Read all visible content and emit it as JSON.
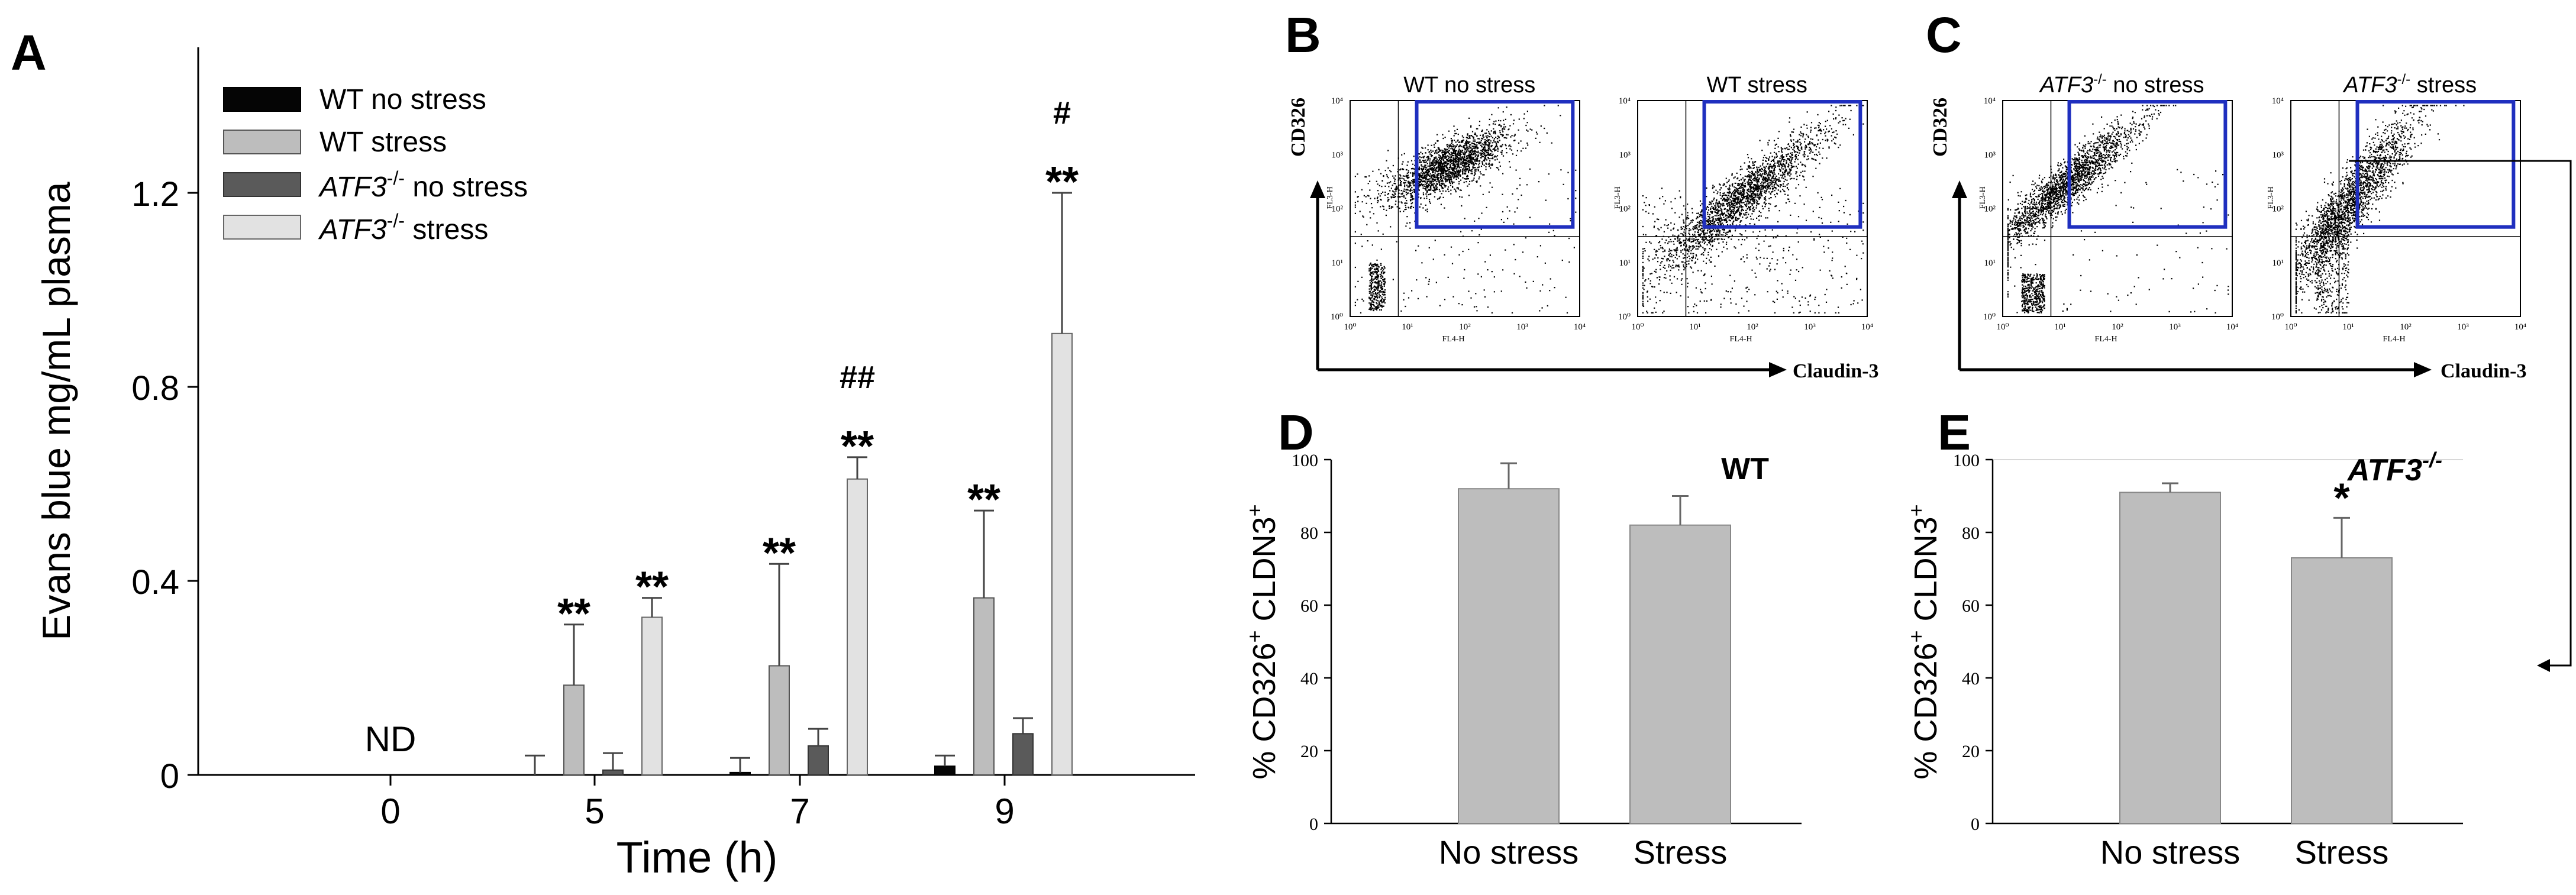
{
  "panels": {
    "A": "A",
    "B": "B",
    "C": "C",
    "D": "D",
    "E": "E"
  },
  "colors": {
    "wt_no_stress": "#050505",
    "wt_stress": "#bdbdbd",
    "atf3_no_stress": "#5a5a5a",
    "atf3_stress": "#e2e2e2",
    "gate": "#1f2fbf",
    "bar_gray": "#bdbdbd"
  },
  "chart_data": [
    {
      "id": "A",
      "type": "bar",
      "ylabel": "Evans blue mg/mL plasma",
      "xlabel": "Time (h)",
      "categories": [
        "0",
        "5",
        "7",
        "9"
      ],
      "yticks": [
        "0",
        "0.4",
        "0.8",
        "1.2"
      ],
      "ylim": [
        0,
        1.5
      ],
      "series": [
        {
          "name": "WT no stress",
          "name_italic": "",
          "name_sup": "",
          "name_rest": "",
          "values": [
            null,
            0.0,
            0.005,
            0.018
          ],
          "errors": [
            null,
            0.04,
            0.03,
            0.022
          ]
        },
        {
          "name": "WT stress",
          "name_italic": "",
          "name_sup": "",
          "name_rest": "",
          "values": [
            null,
            0.185,
            0.225,
            0.365
          ],
          "errors": [
            null,
            0.125,
            0.21,
            0.18
          ]
        },
        {
          "name": "ATF3-/- no stress",
          "name_italic": "ATF3",
          "name_sup": "-/-",
          "name_rest": " no stress",
          "values": [
            null,
            0.01,
            0.06,
            0.085
          ],
          "errors": [
            null,
            0.035,
            0.035,
            0.032
          ]
        },
        {
          "name": "ATF3-/- stress",
          "name_italic": "ATF3",
          "name_sup": "-/-",
          "name_rest": " stress",
          "values": [
            null,
            0.325,
            0.61,
            0.91
          ],
          "errors": [
            null,
            0.04,
            0.045,
            0.29
          ]
        }
      ],
      "annotations": [
        {
          "category": 0,
          "series": "center",
          "text": "ND"
        },
        {
          "category": 1,
          "series": 1,
          "text": "**"
        },
        {
          "category": 1,
          "series": 3,
          "text": "**"
        },
        {
          "category": 2,
          "series": 1,
          "text": "**"
        },
        {
          "category": 2,
          "series": 3,
          "text": "**"
        },
        {
          "category": 2,
          "series": 3,
          "text": "##",
          "level": 2
        },
        {
          "category": 3,
          "series": 1,
          "text": "**"
        },
        {
          "category": 3,
          "series": 3,
          "text": "**"
        },
        {
          "category": 3,
          "series": 3,
          "text": "#",
          "level": 2
        }
      ]
    },
    {
      "id": "D",
      "type": "bar",
      "ylabel": "% CD326+ CLDN3+",
      "ylabel_parts": [
        "% CD326",
        "+",
        " CLDN3",
        "+"
      ],
      "title": "WT",
      "title_italic": "",
      "title_sup": "",
      "categories": [
        "No stress",
        "Stress"
      ],
      "values": [
        92,
        82
      ],
      "errors": [
        7,
        8
      ],
      "yticks": [
        "0",
        "20",
        "40",
        "60",
        "80",
        "100"
      ],
      "ylim": [
        0,
        100
      ],
      "significance": [
        "",
        ""
      ]
    },
    {
      "id": "E",
      "type": "bar",
      "ylabel": "% CD326+ CLDN3+",
      "ylabel_parts": [
        "% CD326",
        "+",
        " CLDN3",
        "+"
      ],
      "title": "ATF3-/-",
      "title_italic": "ATF3",
      "title_sup": "-/-",
      "categories": [
        "No stress",
        "Stress"
      ],
      "values": [
        91,
        73
      ],
      "errors": [
        2.5,
        11
      ],
      "yticks": [
        "0",
        "20",
        "40",
        "60",
        "80",
        "100"
      ],
      "ylim": [
        0,
        100
      ],
      "significance": [
        "",
        "*"
      ]
    }
  ],
  "flow": {
    "B": {
      "yaxis": "CD326",
      "xaxis": "Claudin-3",
      "plots": [
        {
          "label": "WT no stress",
          "italic": "",
          "sup": "",
          "rest": "",
          "kind": "wt_ns"
        },
        {
          "label": "WT stress",
          "italic": "",
          "sup": "",
          "rest": "",
          "kind": "wt_s"
        }
      ]
    },
    "C": {
      "yaxis": "CD326",
      "xaxis": "Claudin-3",
      "plots": [
        {
          "label": "ATF3-/- no stress",
          "italic": "ATF3",
          "sup": "-/-",
          "rest": " no stress",
          "kind": "atf_ns"
        },
        {
          "label": "ATF3-/- stress",
          "italic": "ATF3",
          "sup": "-/-",
          "rest": " stress",
          "kind": "atf_s"
        }
      ]
    },
    "ticks": [
      "10⁰",
      "10¹",
      "10²",
      "10³",
      "10⁴"
    ],
    "axis_small": {
      "fl3": "FL3-H",
      "fl4": "FL4-H"
    }
  }
}
